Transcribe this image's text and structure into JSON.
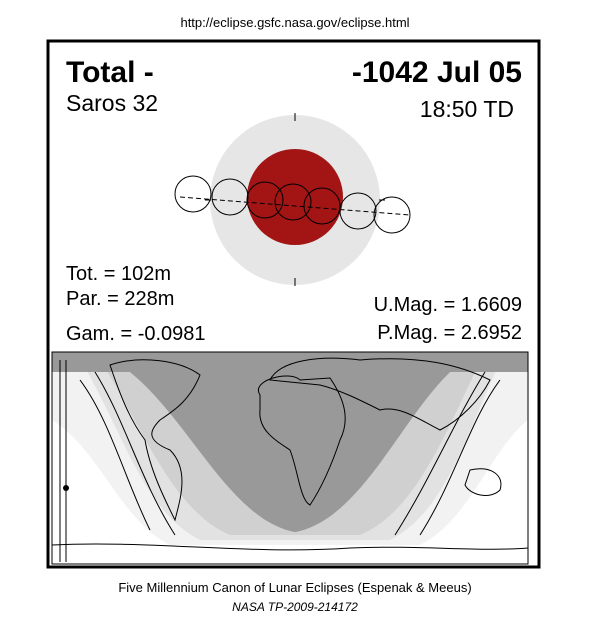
{
  "header": {
    "url": "http://eclipse.gsfc.nasa.gov/eclipse.html"
  },
  "eclipse": {
    "type": "Total  -",
    "date": "-1042 Jul 05",
    "saros": "Saros  32",
    "time": "18:50 TD",
    "tot": "Tot. = 102m",
    "par": "Par. = 228m",
    "gam": "Gam. = -0.0981",
    "umag": "U.Mag. = 1.6609",
    "pmag": "P.Mag. = 2.6952"
  },
  "footer": {
    "line1": "Five Millennium Canon of Lunar Eclipses (Espenak & Meeus)",
    "line2": "NASA TP-2009-214172"
  }
}
